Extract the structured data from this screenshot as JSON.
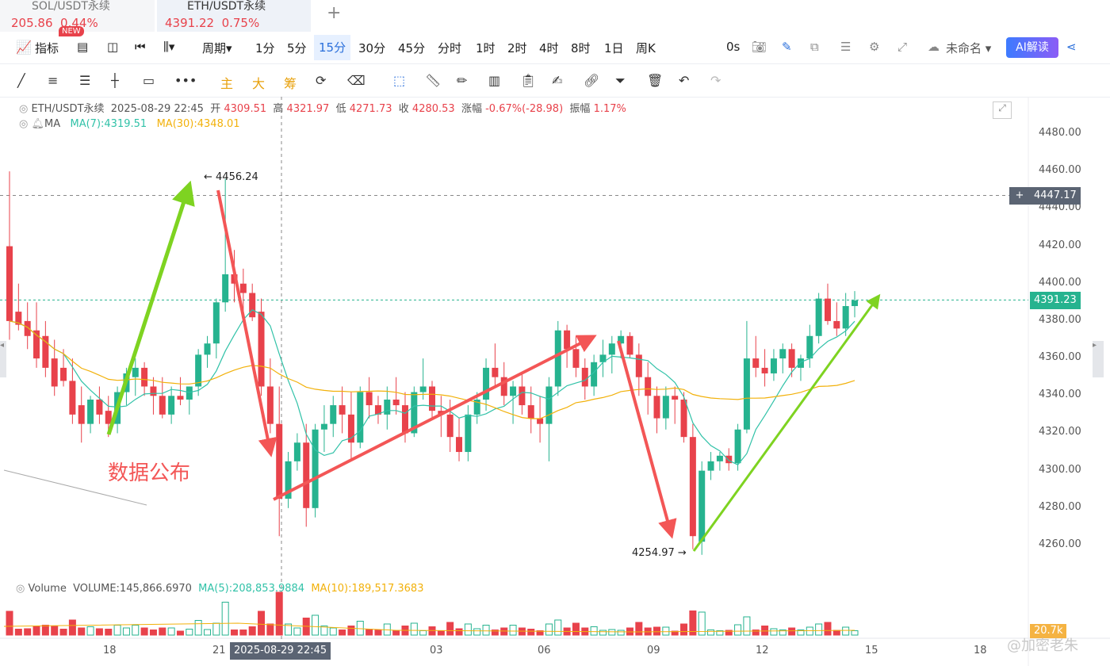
{
  "tabs": [
    {
      "name": "SOL/USDT永续",
      "price": "205.86",
      "change": "0.44%"
    },
    {
      "name": "ETH/USDT永续",
      "price": "4391.22",
      "change": "0.75%"
    }
  ],
  "toolbar": {
    "indicator_label": "指标",
    "new_badge": "NEW",
    "period_label": "周期",
    "intervals": [
      "1分",
      "5分",
      "15分",
      "30分",
      "45分",
      "分时",
      "1时",
      "2时",
      "4时",
      "8时",
      "1日",
      "周K"
    ],
    "active_interval": "15分",
    "countdown": "0s",
    "layout_name": "未命名",
    "ai_label": "AI解读"
  },
  "drawtools": {
    "main": "主",
    "big": "大",
    "chip": "筹"
  },
  "info": {
    "symbol": "ETH/USDT永续",
    "datetime": "2025-08-29 22:45",
    "open_label": "开",
    "open": "4309.51",
    "high_label": "高",
    "high": "4321.97",
    "low_label": "低",
    "low": "4271.73",
    "close_label": "收",
    "close": "4280.53",
    "chg_label": "涨幅",
    "chg": "-0.67%(-28.98)",
    "amp_label": "振幅",
    "amp": "1.17%",
    "ma_label": "MA",
    "ma7": "MA(7):4319.51",
    "ma30": "MA(30):4348.01",
    "vol_label": "Volume",
    "vol": "VOLUME:145,866.6970",
    "vma5": "MA(5):208,853.9884",
    "vma10": "MA(10):189,517.3683"
  },
  "chart_data": {
    "type": "candlestick",
    "y_ticks": [
      "4480.00",
      "4460.00",
      "4440.00",
      "4420.00",
      "4400.00",
      "4380.00",
      "4360.00",
      "4340.00",
      "4320.00",
      "4300.00",
      "4280.00",
      "4260.00"
    ],
    "x_ticks": [
      "18",
      "21",
      "03",
      "06",
      "09",
      "12",
      "15",
      "18"
    ],
    "crosshair_time": "2025-08-29 22:45",
    "crosshair_price": "4447.17",
    "last_price": "4391.23",
    "high_marker": "4456.24",
    "low_marker": "4254.97",
    "volume_axis_label": "20.7k",
    "annotation": "数据公布",
    "ylim": [
      4250,
      4490
    ],
    "colors": {
      "up": "#26b38f",
      "down": "#e8424b",
      "ma7": "#31c2a8",
      "ma30": "#f2b10b",
      "arrow_green": "#7ed321",
      "arrow_red": "#f35656"
    }
  },
  "watermark": "@加密老朱"
}
